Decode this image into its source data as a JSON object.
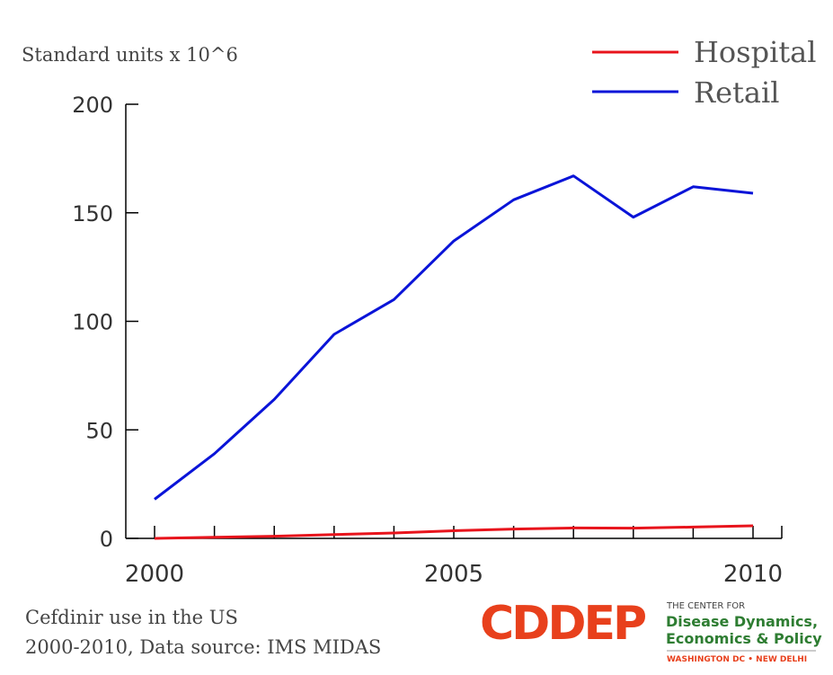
{
  "chart_data": {
    "type": "line",
    "ylabel": "Standard units x 10^6",
    "x": [
      2000,
      2001,
      2002,
      2003,
      2004,
      2005,
      2006,
      2007,
      2008,
      2009,
      2010
    ],
    "xlim": [
      2000,
      2010
    ],
    "ylim": [
      0,
      200
    ],
    "xticks": [
      2000,
      2005,
      2010
    ],
    "yticks": [
      0,
      50,
      100,
      150,
      200
    ],
    "series": [
      {
        "name": "Hospital",
        "color": "#e8141c",
        "values": [
          0,
          0.5,
          1,
          1.8,
          2.5,
          3.5,
          4.3,
          4.8,
          4.7,
          5.2,
          5.8
        ]
      },
      {
        "name": "Retail",
        "color": "#0a14d8",
        "values": [
          18,
          39,
          64,
          94,
          110,
          137,
          156,
          167,
          148,
          162,
          159
        ]
      }
    ],
    "legend": "top-right",
    "grid": false
  },
  "caption": {
    "line1": "Cefdinir use in the US",
    "line2": "2000-2010, Data source: IMS MIDAS"
  },
  "logo": {
    "mark": "CDDEP",
    "small_caps": "THE CENTER FOR",
    "name_line1": "Disease Dynamics,",
    "name_line2": "Economics & Policy",
    "locations": "WASHINGTON DC • NEW DELHI",
    "mark_color": "#e8401c",
    "name_color": "#2e7d32"
  }
}
